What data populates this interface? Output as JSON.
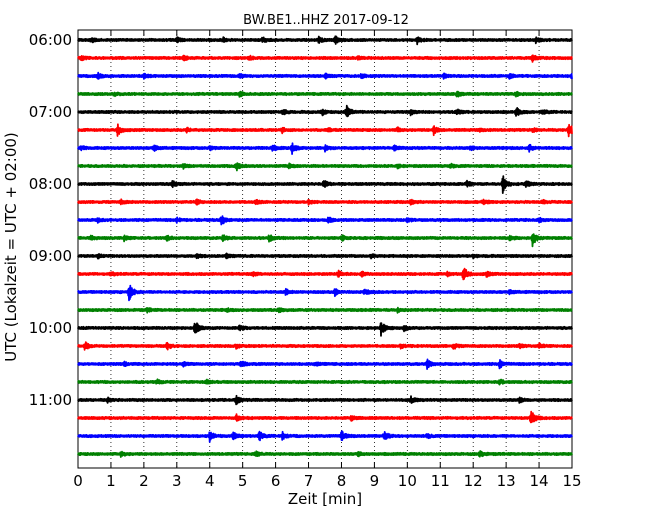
{
  "chart_data": {
    "type": "line",
    "title": "BW.BE1..HHZ 2017-09-12",
    "xlabel": "Zeit  [min]",
    "ylabel": "UTC (Lokalzeit = UTC + 02:00)",
    "xlim": [
      0,
      15
    ],
    "x_ticks": [
      0,
      1,
      2,
      3,
      4,
      5,
      6,
      7,
      8,
      9,
      10,
      11,
      12,
      13,
      14,
      15
    ],
    "x_tick_labels": [
      "0",
      "1",
      "2",
      "3",
      "4",
      "5",
      "6",
      "7",
      "8",
      "9",
      "10",
      "11",
      "12",
      "13",
      "14",
      "15"
    ],
    "hour_labels": [
      "06:00",
      "07:00",
      "08:00",
      "09:00",
      "10:00",
      "11:00"
    ],
    "trace_interval_minutes": 15,
    "color_cycle": [
      "#000000",
      "#ff0000",
      "#0000ff",
      "#008000"
    ],
    "grid": "vertical dotted lines at each minute",
    "traces": [
      {
        "start": "06:00",
        "events": [
          [
            0.4,
            0.25
          ],
          [
            3.0,
            0.25
          ],
          [
            4.4,
            0.25
          ],
          [
            5.6,
            0.3
          ],
          [
            7.3,
            0.3
          ],
          [
            7.8,
            0.45
          ],
          [
            10.3,
            0.35
          ],
          [
            13.9,
            0.25
          ]
        ]
      },
      {
        "start": "06:15",
        "events": [
          [
            0.1,
            0.25
          ],
          [
            3.2,
            0.3
          ],
          [
            5.2,
            0.2
          ],
          [
            8.5,
            0.2
          ],
          [
            13.8,
            0.35
          ]
        ]
      },
      {
        "start": "06:30",
        "events": [
          [
            0.6,
            0.3
          ],
          [
            2.0,
            0.2
          ],
          [
            4.9,
            0.2
          ],
          [
            7.5,
            0.25
          ],
          [
            8.6,
            0.2
          ],
          [
            11.1,
            0.2
          ],
          [
            13.1,
            0.2
          ],
          [
            15.0,
            0.4
          ]
        ]
      },
      {
        "start": "06:45",
        "events": [
          [
            1.1,
            0.2
          ],
          [
            4.9,
            0.25
          ],
          [
            11.5,
            0.3
          ],
          [
            13.3,
            0.2
          ]
        ]
      },
      {
        "start": "07:00",
        "events": [
          [
            6.2,
            0.35
          ],
          [
            7.4,
            0.35
          ],
          [
            8.15,
            0.8
          ],
          [
            10.1,
            0.25
          ],
          [
            11.5,
            0.25
          ],
          [
            13.3,
            0.5
          ],
          [
            14.1,
            0.25
          ]
        ]
      },
      {
        "start": "07:15",
        "events": [
          [
            1.2,
            0.6
          ],
          [
            3.3,
            0.2
          ],
          [
            6.2,
            0.25
          ],
          [
            7.6,
            0.25
          ],
          [
            9.7,
            0.25
          ],
          [
            10.8,
            0.5
          ],
          [
            12.2,
            0.2
          ],
          [
            13.8,
            0.2
          ],
          [
            14.9,
            1.0
          ]
        ]
      },
      {
        "start": "07:30",
        "events": [
          [
            0.1,
            0.2
          ],
          [
            2.3,
            0.35
          ],
          [
            4.0,
            0.2
          ],
          [
            5.9,
            0.4
          ],
          [
            6.5,
            0.55
          ],
          [
            7.5,
            0.3
          ],
          [
            9.6,
            0.25
          ],
          [
            11.9,
            0.2
          ],
          [
            13.7,
            0.35
          ]
        ]
      },
      {
        "start": "07:45",
        "events": [
          [
            3.2,
            0.2
          ],
          [
            4.8,
            0.5
          ],
          [
            6.4,
            0.2
          ],
          [
            9.7,
            0.2
          ],
          [
            11.3,
            0.2
          ]
        ]
      },
      {
        "start": "08:00",
        "events": [
          [
            2.85,
            0.35
          ],
          [
            7.45,
            0.45
          ],
          [
            11.8,
            0.3
          ],
          [
            12.9,
            1.0
          ],
          [
            13.6,
            0.35
          ]
        ]
      },
      {
        "start": "08:15",
        "events": [
          [
            1.3,
            0.2
          ],
          [
            3.6,
            0.25
          ],
          [
            5.4,
            0.2
          ],
          [
            7.0,
            0.2
          ],
          [
            10.1,
            0.25
          ],
          [
            12.3,
            0.25
          ],
          [
            14.1,
            0.2
          ]
        ]
      },
      {
        "start": "08:30",
        "events": [
          [
            0.6,
            0.2
          ],
          [
            3.0,
            0.2
          ],
          [
            4.35,
            0.55
          ],
          [
            7.6,
            0.3
          ],
          [
            10.0,
            0.2
          ],
          [
            14.0,
            0.2
          ]
        ]
      },
      {
        "start": "08:45",
        "events": [
          [
            0.4,
            0.3
          ],
          [
            1.4,
            0.25
          ],
          [
            2.7,
            0.25
          ],
          [
            4.4,
            0.3
          ],
          [
            5.8,
            0.4
          ],
          [
            8.0,
            0.3
          ],
          [
            13.1,
            0.3
          ],
          [
            13.8,
            0.9
          ]
        ]
      },
      {
        "start": "09:00",
        "events": [
          [
            0.6,
            0.2
          ],
          [
            3.6,
            0.2
          ],
          [
            4.5,
            0.2
          ],
          [
            8.9,
            0.2
          ],
          [
            12.0,
            0.2
          ]
        ]
      },
      {
        "start": "09:15",
        "events": [
          [
            1.0,
            0.2
          ],
          [
            5.3,
            0.2
          ],
          [
            7.9,
            0.3
          ],
          [
            8.6,
            0.25
          ],
          [
            11.2,
            0.2
          ],
          [
            11.7,
            0.9
          ],
          [
            12.4,
            0.25
          ]
        ]
      },
      {
        "start": "09:30",
        "events": [
          [
            1.55,
            1.0
          ],
          [
            6.3,
            0.3
          ],
          [
            7.8,
            0.35
          ],
          [
            8.7,
            0.3
          ],
          [
            13.1,
            0.2
          ]
        ]
      },
      {
        "start": "09:45",
        "events": [
          [
            2.1,
            0.2
          ],
          [
            4.5,
            0.2
          ],
          [
            6.1,
            0.2
          ],
          [
            9.7,
            0.2
          ]
        ]
      },
      {
        "start": "10:00",
        "events": [
          [
            3.55,
            0.85
          ],
          [
            4.9,
            0.3
          ],
          [
            9.2,
            0.8
          ],
          [
            9.9,
            0.25
          ]
        ]
      },
      {
        "start": "10:15",
        "events": [
          [
            0.2,
            0.45
          ],
          [
            2.7,
            0.4
          ],
          [
            4.8,
            0.2
          ],
          [
            9.8,
            0.2
          ],
          [
            11.4,
            0.3
          ],
          [
            13.4,
            0.2
          ],
          [
            14.0,
            0.25
          ]
        ]
      },
      {
        "start": "10:30",
        "events": [
          [
            1.4,
            0.2
          ],
          [
            3.2,
            0.2
          ],
          [
            4.95,
            0.35
          ],
          [
            7.2,
            0.2
          ],
          [
            10.6,
            0.45
          ],
          [
            12.8,
            0.4
          ]
        ]
      },
      {
        "start": "10:45",
        "events": [
          [
            2.4,
            0.2
          ],
          [
            3.9,
            0.2
          ],
          [
            12.8,
            0.25
          ]
        ]
      },
      {
        "start": "11:00",
        "events": [
          [
            0.9,
            0.2
          ],
          [
            4.8,
            0.4
          ],
          [
            10.1,
            0.35
          ],
          [
            13.4,
            0.25
          ]
        ]
      },
      {
        "start": "11:15",
        "events": [
          [
            4.8,
            0.4
          ],
          [
            8.3,
            0.2
          ],
          [
            13.75,
            1.0
          ]
        ]
      },
      {
        "start": "11:30",
        "events": [
          [
            4.0,
            0.55
          ],
          [
            4.7,
            0.45
          ],
          [
            5.5,
            0.5
          ],
          [
            6.2,
            0.4
          ],
          [
            8.0,
            0.5
          ],
          [
            9.3,
            0.5
          ],
          [
            10.6,
            0.2
          ]
        ]
      },
      {
        "start": "11:45",
        "events": [
          [
            1.3,
            0.3
          ],
          [
            5.4,
            0.35
          ],
          [
            8.5,
            0.2
          ],
          [
            12.2,
            0.35
          ]
        ]
      }
    ]
  }
}
